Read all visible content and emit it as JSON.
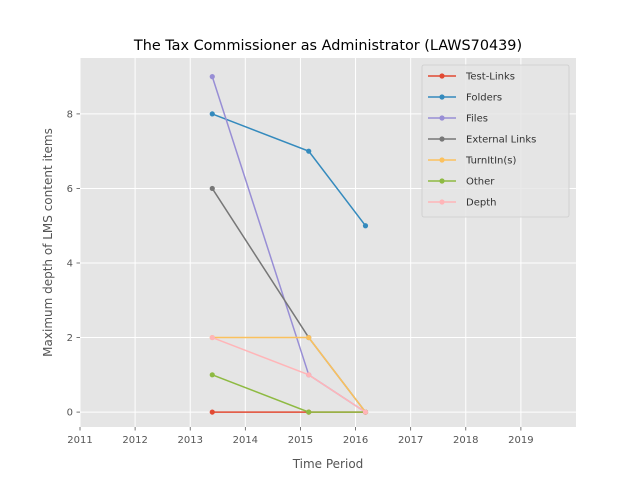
{
  "chart_data": {
    "type": "line",
    "title": "The Tax Commissioner as Administrator (LAWS70439)",
    "xlabel": "Time Period",
    "ylabel": "Maximum depth of LMS content items",
    "xlim": [
      2011,
      2020
    ],
    "ylim": [
      -0.4,
      9.5
    ],
    "xticks": [
      "2011",
      "2012",
      "2013",
      "2014",
      "2015",
      "2016",
      "2017",
      "2018",
      "2019"
    ],
    "yticks": [
      "0",
      "2",
      "4",
      "6",
      "8"
    ],
    "x": [
      2013.4,
      2015.15,
      2016.18
    ],
    "grid": true,
    "legend_position": "top-right",
    "series": [
      {
        "name": "Test-Links",
        "color": "#E24A33",
        "values": [
          0,
          0,
          0
        ]
      },
      {
        "name": "Folders",
        "color": "#348ABD",
        "values": [
          8,
          7,
          5
        ]
      },
      {
        "name": "Files",
        "color": "#988ED5",
        "values": [
          9,
          1,
          0
        ]
      },
      {
        "name": "External Links",
        "color": "#777777",
        "values": [
          6,
          2,
          0
        ]
      },
      {
        "name": "TurnItIn(s)",
        "color": "#FBC15E",
        "values": [
          2,
          2,
          0
        ]
      },
      {
        "name": "Other",
        "color": "#8EBA42",
        "values": [
          1,
          0,
          0
        ]
      },
      {
        "name": "Depth",
        "color": "#FFB5B8",
        "values": [
          2,
          1,
          0
        ]
      }
    ]
  }
}
